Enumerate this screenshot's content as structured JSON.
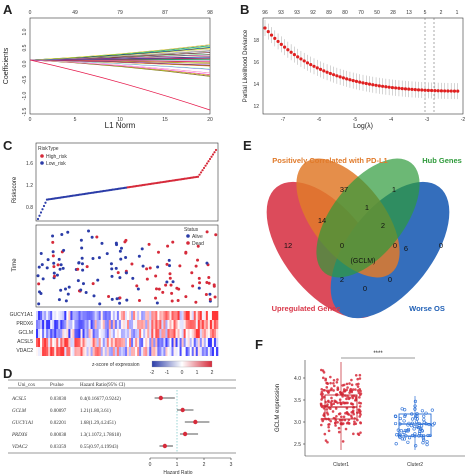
{
  "labels": {
    "a": "A",
    "b": "B",
    "c": "C",
    "d": "D",
    "e": "E",
    "f": "F"
  },
  "panel_a": {
    "xlabel": "L1 Norm",
    "ylabel": "Coefficients",
    "top_ticks": [
      "0",
      "49",
      "79",
      "87",
      "98"
    ],
    "x_ticks": [
      "0",
      "5",
      "10",
      "15",
      "20"
    ],
    "y_ticks": [
      "-1.5",
      "-1.0",
      "-0.5",
      "0.0",
      "0.5",
      "1.0"
    ]
  },
  "panel_b": {
    "xlabel": "Log(λ)",
    "ylabel": "Partial Likelihood Deviance",
    "top_ticks": [
      "96",
      "93",
      "93",
      "92",
      "89",
      "80",
      "70",
      "50",
      "28",
      "13",
      "5",
      "2",
      "1"
    ],
    "x_ticks": [
      "-7",
      "-6",
      "-5",
      "-4",
      "-3",
      "-2"
    ],
    "y_ticks": [
      "12",
      "14",
      "16",
      "18"
    ]
  },
  "panel_c": {
    "legend1_title": "RiskType",
    "legend1_items": [
      "High_risk",
      "Low_risk"
    ],
    "ylabel_top": "Riskscore",
    "y_top_ticks": [
      "0.8",
      "1.2",
      "1.6"
    ],
    "legend2_title": "Status",
    "legend2_items": [
      "Alive",
      "Dead"
    ],
    "ylabel_mid": "Time",
    "genes": [
      "GUCY1A1",
      "PRDX6",
      "GCLM",
      "ACSL5",
      "VDAC2"
    ],
    "zscore_label": "z-score of expression",
    "zscore_ticks": [
      "-2",
      "-1",
      "0",
      "1",
      "2"
    ]
  },
  "panel_d": {
    "headers": [
      "Uni_cox",
      "Pvalue",
      "Hazard Ratio(95% CI)"
    ],
    "rows": [
      {
        "gene": "ACSL5",
        "p": "0.03030",
        "hr": "0.4(0.16677,0.9242)"
      },
      {
        "gene": "GCLM",
        "p": "0.00097",
        "hr": "1.21(1.80,3.61)"
      },
      {
        "gene": "GUCY1A1",
        "p": "0.02201",
        "hr": "1.68(1.29,4.2451)"
      },
      {
        "gene": "PRDX6",
        "p": "0.00038",
        "hr": "1.3(1.1072,1.78618)"
      },
      {
        "gene": "VDAC2",
        "p": "0.03359",
        "hr": "0.55(0.97,4.19943)"
      }
    ],
    "x_ticks": [
      "0",
      "1",
      "2",
      "3"
    ],
    "xlabel": "Hazard Ratio"
  },
  "panel_e": {
    "sets": [
      "Positively Correlated with PD-L1",
      "Hub Genes",
      "Upregulated Genes",
      "Worse OS"
    ],
    "colors": [
      "#e07a2a",
      "#2e9a3a",
      "#d9384a",
      "#1f5fb5"
    ],
    "counts": {
      "only_up": "12",
      "only_pdl1": "37",
      "only_hub": "1",
      "only_os": "0",
      "pdl1_hub": "1",
      "up_pdl1": "14",
      "hub_os": "6",
      "up_os": "0",
      "up_pdl1_hub": "0",
      "pdl1_hub_os": "0",
      "up_pdl1_os": "2",
      "center": "(GCLM)",
      "up_hub_os": "0",
      "bottom": "0",
      "mid": "2"
    }
  },
  "panel_f": {
    "ylabel": "GCLM expression",
    "sig": "****",
    "x_ticks": [
      "Cluter1",
      "Cluter2"
    ],
    "y_ticks": [
      "2.5",
      "3.0",
      "3.5",
      "4.0"
    ]
  }
}
